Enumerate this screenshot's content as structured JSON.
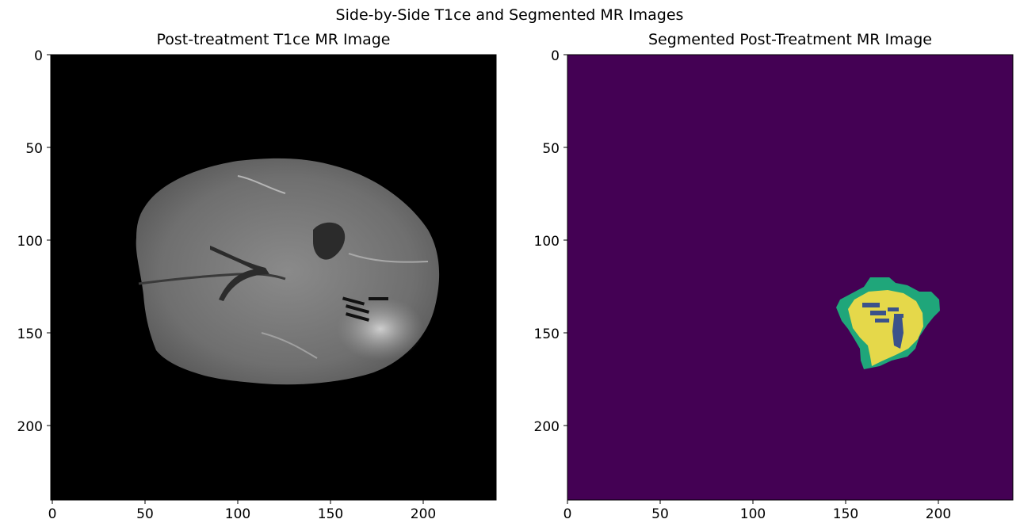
{
  "figure": {
    "suptitle": "Side-by-Side T1ce and Segmented MR Images"
  },
  "panels": [
    {
      "title": "Post-treatment T1ce MR Image",
      "x_ticks": [
        "0",
        "50",
        "100",
        "150",
        "200"
      ],
      "y_ticks": [
        "0",
        "50",
        "100",
        "150",
        "200"
      ],
      "x_range": [
        0,
        240
      ],
      "y_range": [
        0,
        240
      ],
      "background_color": "#000000",
      "tissue_color": "#7a7a7a",
      "ventricle_color": "#2b2b2b"
    },
    {
      "title": "Segmented Post-Treatment MR Image",
      "x_ticks": [
        "0",
        "50",
        "100",
        "150",
        "200"
      ],
      "y_ticks": [
        "0",
        "50",
        "100",
        "150",
        "200"
      ],
      "x_range": [
        0,
        240
      ],
      "y_range": [
        0,
        240
      ],
      "background_color": "#440154",
      "label_colors": {
        "edema": "#1fa67a",
        "enhancing": "#e5d84a",
        "necrotic": "#3b528b"
      }
    }
  ]
}
